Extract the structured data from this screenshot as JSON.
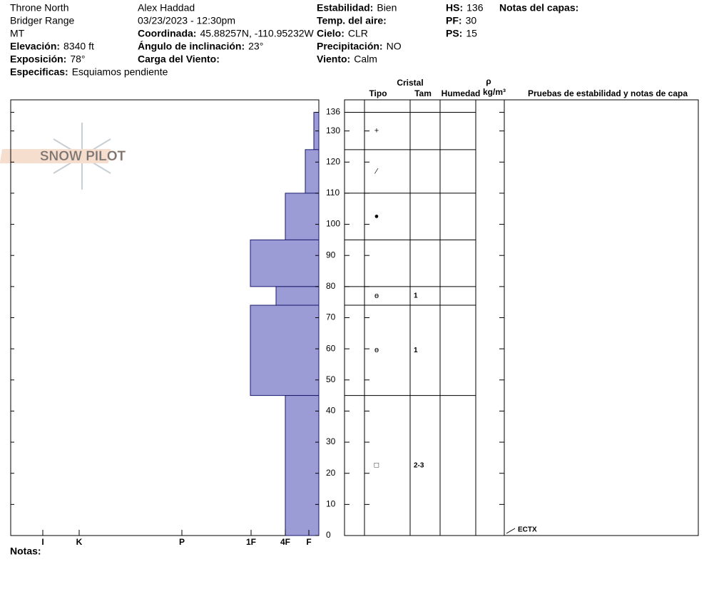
{
  "header": {
    "location": "Throne North",
    "range": "Bridger Range",
    "state": "MT",
    "elevation": {
      "label": "Elevación:",
      "value": "8340 ft"
    },
    "aspect": {
      "label": "Exposición:",
      "value": "78°"
    },
    "specifics": {
      "label": "Especificas:",
      "value": "Esquiamos pendiente"
    },
    "observer": "Alex Haddad",
    "datetime": "03/23/2023 - 12:30pm",
    "coordinates": {
      "label": "Coordinada:",
      "value": "45.88257N, -110.95232W"
    },
    "slope_angle": {
      "label": "Ángulo de inclinación:",
      "value": "23°"
    },
    "wind_loading": {
      "label": "Carga del Viento:"
    },
    "stability": {
      "label": "Estabilidad:",
      "value": "Bien"
    },
    "air_temp": {
      "label": "Temp. del aire:"
    },
    "sky": {
      "label": "Cielo:",
      "value": "CLR"
    },
    "precip": {
      "label": "Precipitación:",
      "value": "NO"
    },
    "wind": {
      "label": "Viento:",
      "value": "Calm"
    },
    "hs": {
      "label": "HS:",
      "value": 136
    },
    "pf": {
      "label": "PF:",
      "value": 30
    },
    "ps": {
      "label": "PS:",
      "value": 15
    },
    "layer_notes_title": "Notas del capas:"
  },
  "logo": "SNOW PILOT",
  "notes_label": "Notas:",
  "columns": {
    "crystal": "Cristal",
    "type": "Tipo",
    "size": "Tam",
    "moisture": "Humedad",
    "density_symbol": "ρ",
    "density_unit": "kg/m³",
    "tests": "Pruebas de estabilidad y notas de capa"
  },
  "chart_data": {
    "type": "snow-profile",
    "color": "#9b9bd6",
    "ylim": [
      0,
      140
    ],
    "yticks": [
      0,
      10,
      20,
      30,
      40,
      50,
      60,
      70,
      80,
      90,
      100,
      110,
      120,
      130,
      136
    ],
    "xlim": [
      0,
      432
    ],
    "xticks": [
      {
        "value": 387,
        "label": "I"
      },
      {
        "value": 336,
        "label": "K"
      },
      {
        "value": 192,
        "label": "P"
      },
      {
        "value": 95,
        "label": "1F"
      },
      {
        "value": 47,
        "label": "4F"
      },
      {
        "value": 14,
        "label": "F"
      }
    ],
    "layers": {
      "top": [
        136,
        124,
        110,
        95,
        80,
        74,
        45
      ],
      "bottom": [
        124,
        110,
        95,
        80,
        74,
        45,
        0
      ],
      "hardness": [
        7,
        19,
        47,
        96,
        60,
        96,
        47
      ],
      "grain": [
        "+",
        "⁄",
        "●",
        null,
        "ɵ",
        "ɵ",
        "□"
      ],
      "size": [
        null,
        null,
        null,
        null,
        "1",
        "1",
        "2-3"
      ]
    },
    "tests": [
      {
        "height": 0,
        "label": "ECTX"
      }
    ]
  }
}
